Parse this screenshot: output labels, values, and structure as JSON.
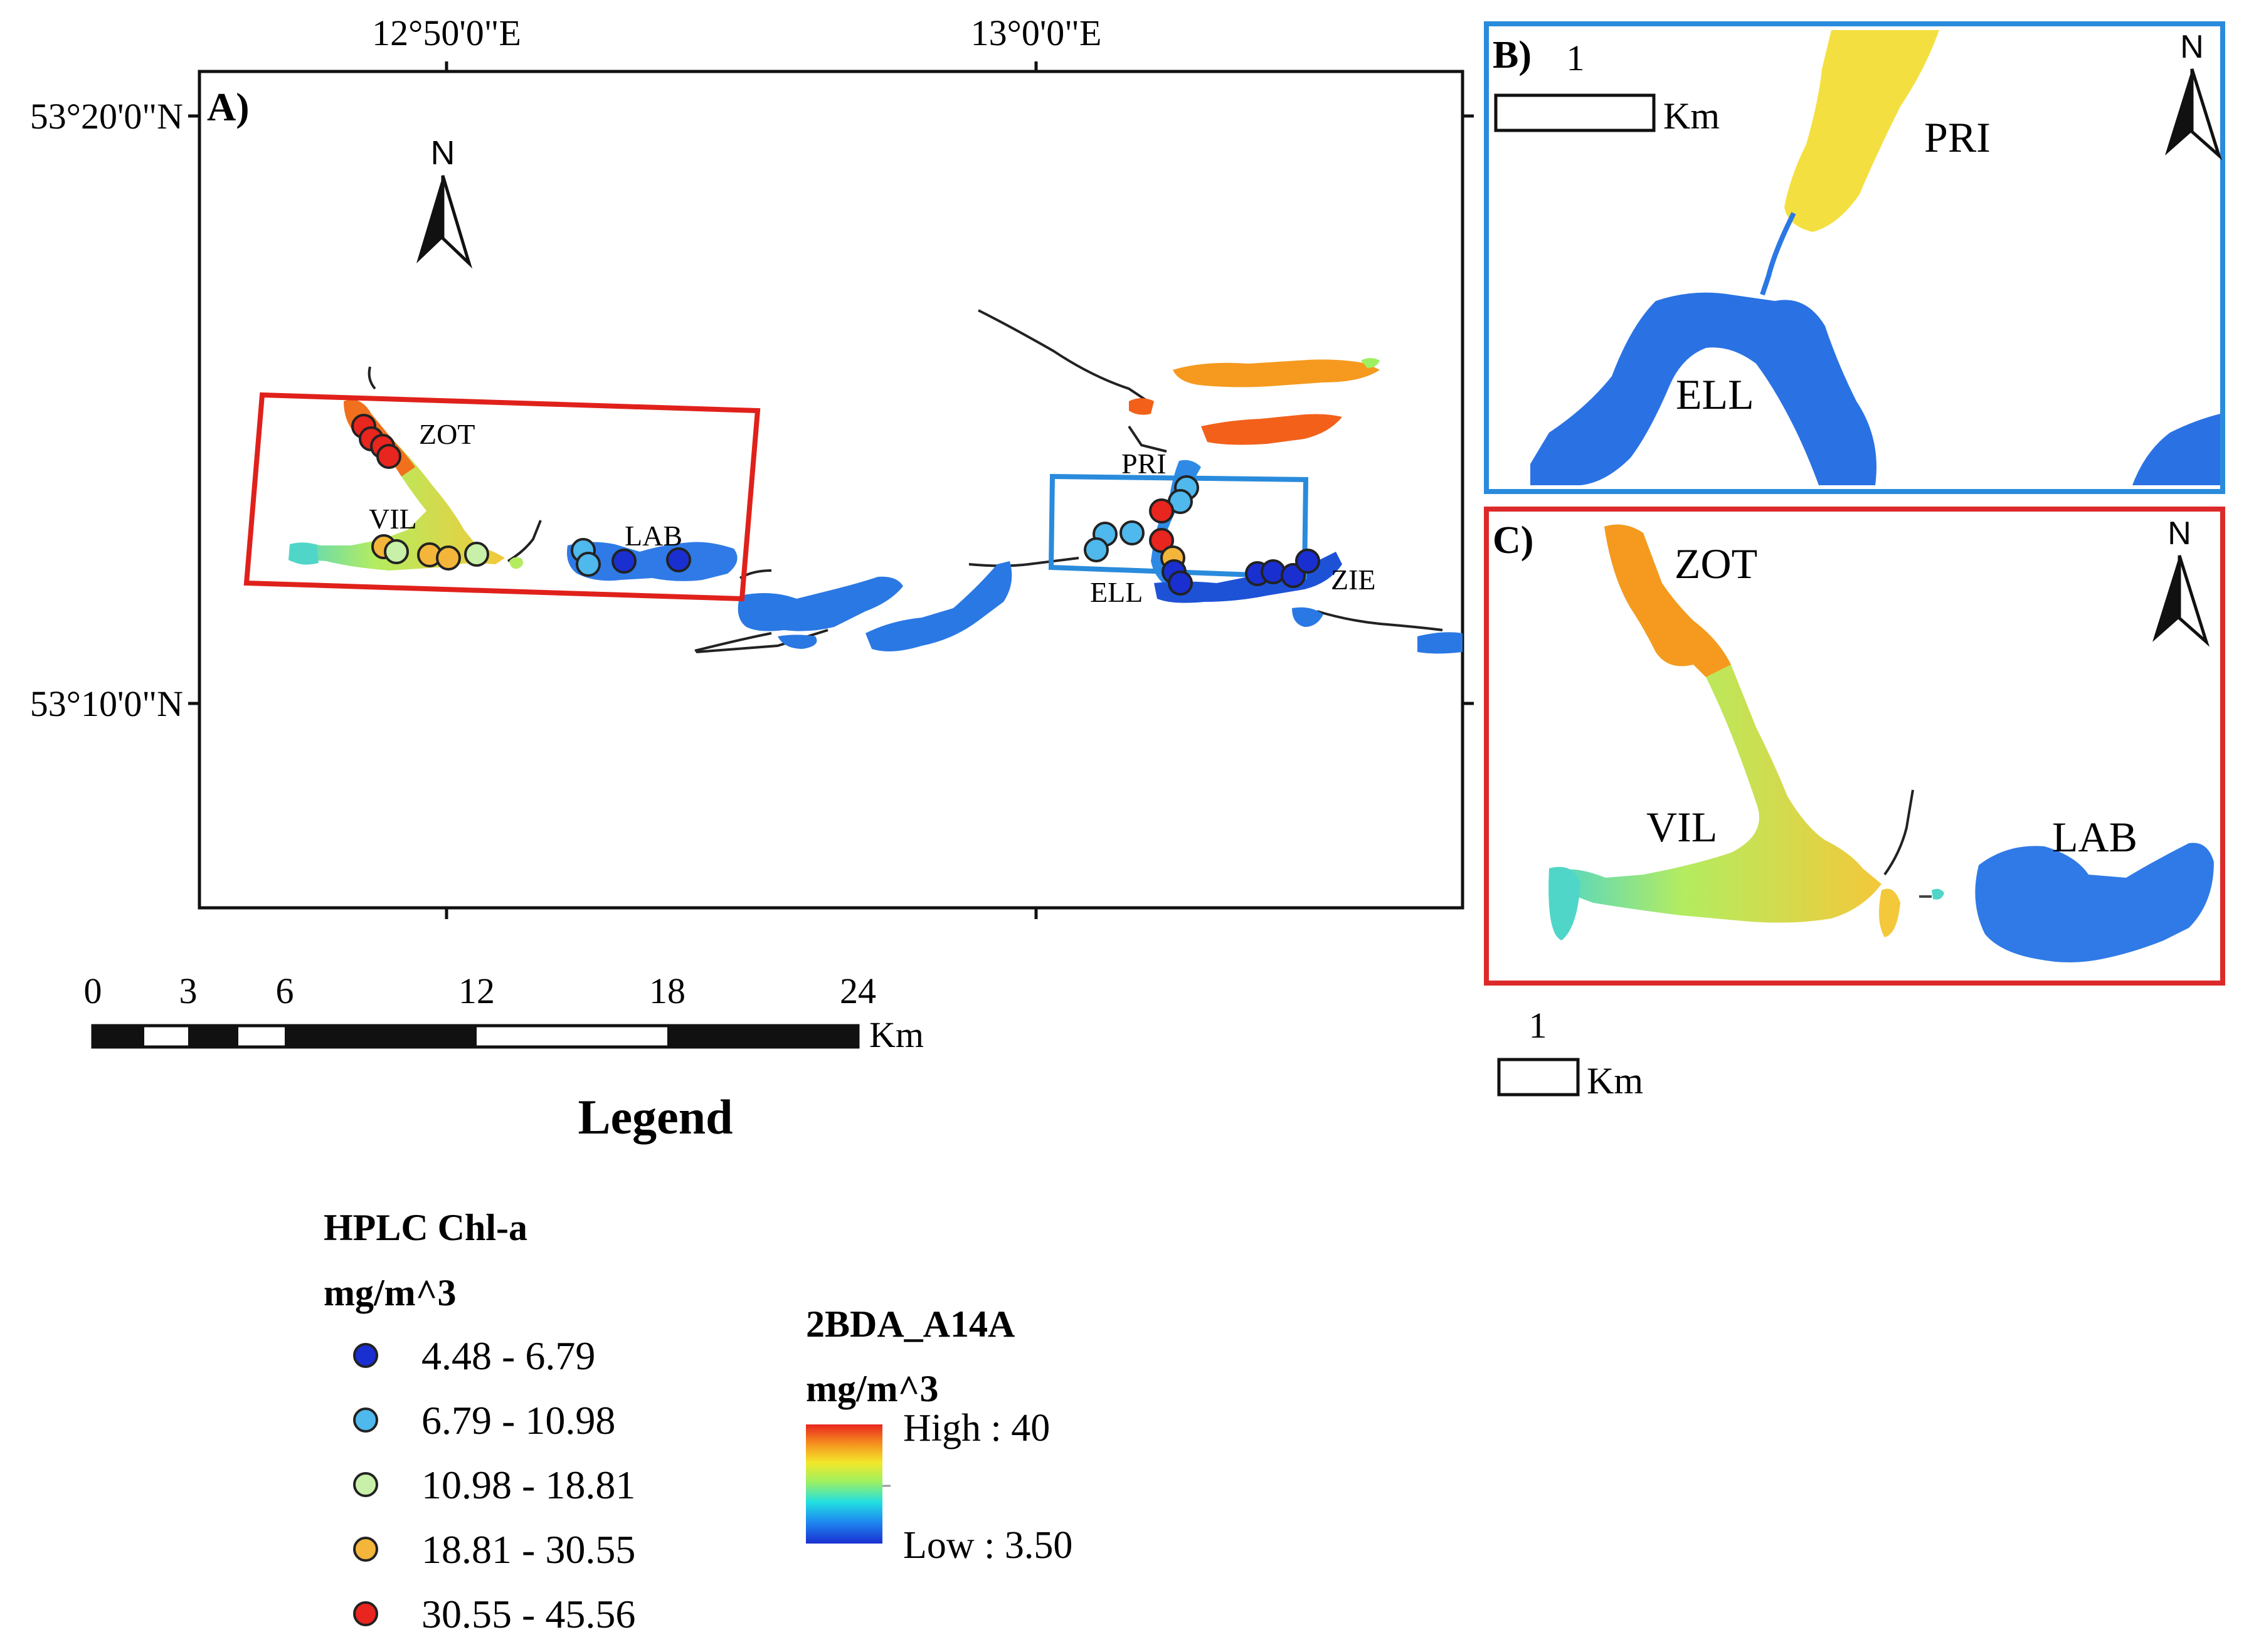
{
  "panel_a": {
    "label": "A)",
    "lon_ticks": [
      "12°50'0\"E",
      "13°0'0\"E"
    ],
    "lat_ticks": [
      "53°20'0\"N",
      "53°10'0\"N"
    ],
    "north": "N",
    "lakes": [
      "ZOT",
      "VIL",
      "LAB",
      "PRI",
      "ELL",
      "ZIE"
    ],
    "scalebar": {
      "ticks": [
        "0",
        "3",
        "6",
        "12",
        "18",
        "24"
      ],
      "unit": "Km"
    }
  },
  "panel_b": {
    "label": "B)",
    "north": "N",
    "lakes": [
      "PRI",
      "ELL"
    ],
    "scalebar": {
      "value": "1",
      "unit": "Km"
    },
    "frame_color": "#2a8bdc"
  },
  "panel_c": {
    "label": "C)",
    "north": "N",
    "lakes": [
      "ZOT",
      "VIL",
      "LAB"
    ],
    "scalebar": {
      "value": "1",
      "unit": "Km"
    },
    "frame_color": "#dc2a2a"
  },
  "legend": {
    "title": "Legend",
    "hplc": {
      "title": "HPLC Chl-a",
      "unit": "mg/m^3",
      "classes": [
        {
          "range": "4.48 - 6.79",
          "color": "#1a2fd0"
        },
        {
          "range": "6.79 - 10.98",
          "color": "#4fb8ec"
        },
        {
          "range": "10.98 - 18.81",
          "color": "#c8f0a8"
        },
        {
          "range": "18.81 - 30.55",
          "color": "#f3b53a"
        },
        {
          "range": "30.55 - 45.56",
          "color": "#e8251e"
        }
      ]
    },
    "raster": {
      "title": "2BDA_A14A",
      "unit": "mg/m^3",
      "high": "High : 40",
      "low": "Low : 3.50",
      "gradient": [
        "#1a2fd0",
        "#1e88f0",
        "#22e0e0",
        "#9ef060",
        "#f3e82a",
        "#f5901e",
        "#e8251e"
      ]
    }
  }
}
